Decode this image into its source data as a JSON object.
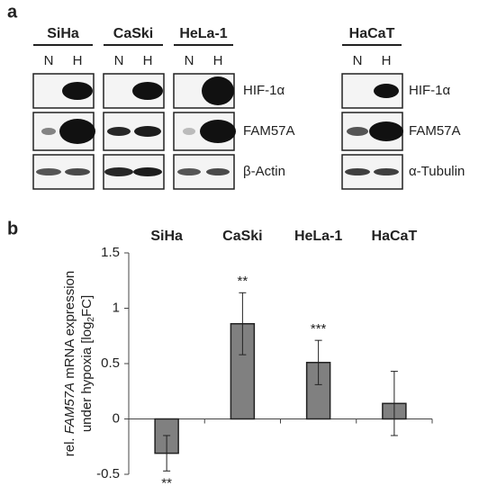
{
  "panel_a": {
    "label": "a",
    "groups": [
      {
        "name": "SiHa",
        "lanes": [
          "N",
          "H"
        ]
      },
      {
        "name": "CaSki",
        "lanes": [
          "N",
          "H"
        ]
      },
      {
        "name": "HeLa-1",
        "lanes": [
          "N",
          "H"
        ]
      },
      {
        "name": "HaCaT",
        "lanes": [
          "N",
          "H"
        ]
      }
    ],
    "row_labels_left": [
      "HIF-1α",
      "FAM57A",
      "β-Actin"
    ],
    "row_labels_right": [
      "HIF-1α",
      "FAM57A",
      "α-Tubulin"
    ]
  },
  "chart_data": {
    "type": "bar",
    "panel_label": "b",
    "y_label": {
      "line1": [
        "rel. ",
        "FAM57A",
        " mRNA expression"
      ],
      "line2": [
        "under hypoxia [log",
        "2",
        "FC]"
      ]
    },
    "categories": [
      "SiHa",
      "CaSki",
      "HeLa-1",
      "HaCaT"
    ],
    "values": [
      -0.31,
      0.86,
      0.51,
      0.14
    ],
    "errors": [
      0.16,
      0.28,
      0.2,
      0.29
    ],
    "significance": [
      "**",
      "**",
      "***",
      null
    ],
    "color": "#808080",
    "ylim": [
      -0.5,
      1.5
    ],
    "yticks": [
      -0.5,
      0,
      0.5,
      1,
      1.5
    ]
  }
}
